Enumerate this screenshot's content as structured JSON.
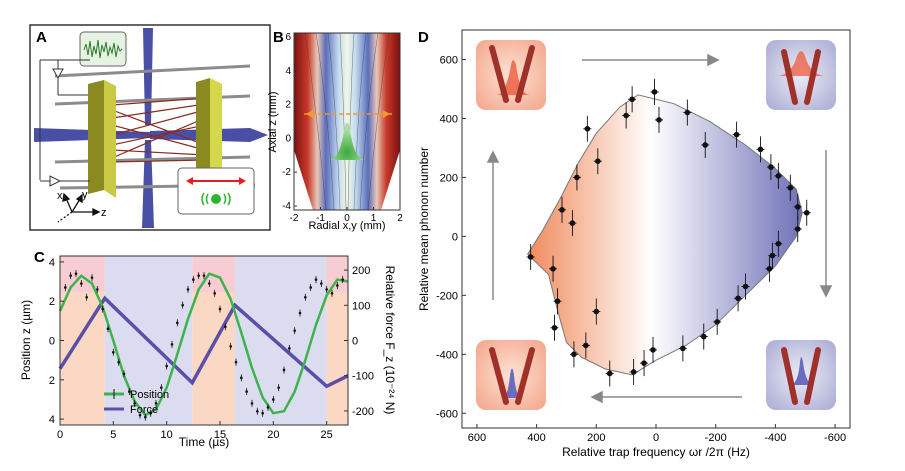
{
  "panels": {
    "A": {
      "label": "A",
      "axes": {
        "x": "x",
        "y": "y",
        "z": "z"
      }
    },
    "B": {
      "label": "B",
      "xlabel": "Radial x,y (mm)",
      "ylabel": "Axial z (mm)",
      "x_ticks": [
        "-2",
        "-1",
        "0",
        "1",
        "2"
      ],
      "y_ticks": [
        "6",
        "4",
        "2",
        "0",
        "-2",
        "-4"
      ]
    },
    "C": {
      "label": "C",
      "xlabel": "Time (µs)",
      "ylabel_left": "Position z (µm)",
      "ylabel_right": "Relative force F_z (10⁻²⁴ N)",
      "x_ticks": [
        "0",
        "5",
        "10",
        "15",
        "20",
        "25"
      ],
      "y_left_ticks": [
        "4",
        "2",
        "0",
        "2",
        "4"
      ],
      "y_right_ticks": [
        "200",
        "100",
        "0",
        "-100",
        "-200"
      ],
      "legend": [
        "Position",
        "Force"
      ]
    },
    "D": {
      "label": "D",
      "xlabel": "Relative trap frequency ωr /2π (Hz)",
      "ylabel": "Relative mean phonon number",
      "x_ticks": [
        "600",
        "400",
        "200",
        "0",
        "-200",
        "-400",
        "-600"
      ],
      "y_ticks": [
        "600",
        "400",
        "200",
        "0",
        "-200",
        "-400",
        "-600"
      ]
    }
  },
  "colors": {
    "position_line": "#3cb44b",
    "force_line": "#5b4fa8",
    "pink_band": "#f7cdd3",
    "peach_band": "#fbd8c4",
    "lavender_band": "#dcdcf0",
    "loop_warm": "#f2a07b",
    "loop_cool": "#7e80c0",
    "trap_rod": "#a0302a"
  },
  "chart_data": [
    {
      "type": "line",
      "panel": "C",
      "xlabel": "Time (µs)",
      "ylabel": "Position z (µm)",
      "y2label": "Relative force F_z (10⁻²⁴ N)",
      "xlim": [
        0,
        27
      ],
      "ylim": [
        4.3,
        -4.3
      ],
      "y2lim": [
        -240,
        240
      ],
      "series": [
        {
          "name": "Position",
          "axis": "left",
          "style": "points",
          "x": [
            0.5,
            1.0,
            1.5,
            2.0,
            2.5,
            3.0,
            3.5,
            4.0,
            4.5,
            5.0,
            5.5,
            6.0,
            6.5,
            7.0,
            7.5,
            8.0,
            8.5,
            9.0,
            9.5,
            10.0,
            10.5,
            11.0,
            11.5,
            12.0,
            12.5,
            13.0,
            13.5,
            14.0,
            14.5,
            15.0,
            15.5,
            16.0,
            16.5,
            17.0,
            17.5,
            18.0,
            18.5,
            19.0,
            19.5,
            20.0,
            20.5,
            21.0,
            21.5,
            22.0,
            22.5,
            23.0,
            23.5,
            24.0,
            24.5,
            25.0,
            25.5,
            26.0,
            26.5
          ],
          "y": [
            2.7,
            3.3,
            3.4,
            2.9,
            2.2,
            3.2,
            2.6,
            1.6,
            0.6,
            -0.6,
            -1.1,
            -1.7,
            -2.6,
            -3.2,
            -3.8,
            -3.9,
            -3.7,
            -3.2,
            -2.4,
            -1.3,
            -0.2,
            0.9,
            1.8,
            2.6,
            3.1,
            3.3,
            3.3,
            2.9,
            2.4,
            1.6,
            0.7,
            -0.3,
            -1.1,
            -1.9,
            -2.6,
            -3.2,
            -3.6,
            -3.7,
            -3.4,
            -3.0,
            -2.4,
            -1.5,
            -0.4,
            0.5,
            1.4,
            2.2,
            2.7,
            3.1,
            2.9,
            2.6,
            2.4,
            2.8,
            3.1
          ]
        },
        {
          "name": "Position fit",
          "axis": "left",
          "style": "line",
          "x": [
            0,
            1,
            2,
            3,
            4,
            5,
            6,
            7,
            8,
            9,
            10,
            11,
            12,
            13,
            14,
            15,
            16,
            17,
            18,
            19,
            20,
            21,
            22,
            23,
            24,
            25,
            26,
            27
          ],
          "y": [
            1.5,
            2.7,
            3.3,
            2.9,
            1.7,
            0.0,
            -1.8,
            -3.1,
            -3.8,
            -3.5,
            -2.4,
            -0.7,
            1.1,
            2.6,
            3.4,
            3.2,
            2.1,
            0.4,
            -1.4,
            -2.9,
            -3.7,
            -3.6,
            -2.6,
            -1.0,
            0.8,
            2.3,
            3.1,
            3.0
          ]
        },
        {
          "name": "Force",
          "axis": "right",
          "style": "line",
          "x": [
            0,
            4.2,
            12.4,
            16.4,
            25.0,
            27
          ],
          "y": [
            -80,
            120,
            -120,
            100,
            -130,
            -100
          ]
        }
      ],
      "bands": [
        {
          "x": [
            0,
            4.2
          ],
          "color": "peach_band"
        },
        {
          "x": [
            4.2,
            12.4
          ],
          "color": "lavender_band"
        },
        {
          "x": [
            12.4,
            16.4
          ],
          "color": "peach_band"
        },
        {
          "x": [
            16.4,
            25.0
          ],
          "color": "lavender_band"
        },
        {
          "x": [
            25.0,
            27
          ],
          "color": "peach_band"
        }
      ],
      "legend": "bottom-left",
      "grid": false
    },
    {
      "type": "scatter",
      "panel": "D",
      "xlabel": "Relative trap frequency ωr /2π (Hz)",
      "ylabel": "Relative mean phonon number",
      "xlim": [
        650,
        -650
      ],
      "ylim": [
        -650,
        700
      ],
      "points": [
        {
          "x": 420,
          "y": -70
        },
        {
          "x": 345,
          "y": -110
        },
        {
          "x": 330,
          "y": -220
        },
        {
          "x": 340,
          "y": -310
        },
        {
          "x": 315,
          "y": 90
        },
        {
          "x": 280,
          "y": 45
        },
        {
          "x": 265,
          "y": 200
        },
        {
          "x": 230,
          "y": 365
        },
        {
          "x": 195,
          "y": 255
        },
        {
          "x": 275,
          "y": -400
        },
        {
          "x": 235,
          "y": -370
        },
        {
          "x": 200,
          "y": -255
        },
        {
          "x": 155,
          "y": -465
        },
        {
          "x": 100,
          "y": 410
        },
        {
          "x": 80,
          "y": 465
        },
        {
          "x": 5,
          "y": 490
        },
        {
          "x": -10,
          "y": 395
        },
        {
          "x": -105,
          "y": 420
        },
        {
          "x": -165,
          "y": 310
        },
        {
          "x": -270,
          "y": 345
        },
        {
          "x": -350,
          "y": 295
        },
        {
          "x": -385,
          "y": 235
        },
        {
          "x": -410,
          "y": 205
        },
        {
          "x": -450,
          "y": 165
        },
        {
          "x": -475,
          "y": 100
        },
        {
          "x": -505,
          "y": 80
        },
        {
          "x": -475,
          "y": 25
        },
        {
          "x": -410,
          "y": -25
        },
        {
          "x": -390,
          "y": -65
        },
        {
          "x": -380,
          "y": -110
        },
        {
          "x": -300,
          "y": -170
        },
        {
          "x": -275,
          "y": -210
        },
        {
          "x": -205,
          "y": -290
        },
        {
          "x": -160,
          "y": -340
        },
        {
          "x": -90,
          "y": -380
        },
        {
          "x": 10,
          "y": -385
        },
        {
          "x": 40,
          "y": -430
        },
        {
          "x": 75,
          "y": -460
        }
      ],
      "grid": false
    }
  ]
}
